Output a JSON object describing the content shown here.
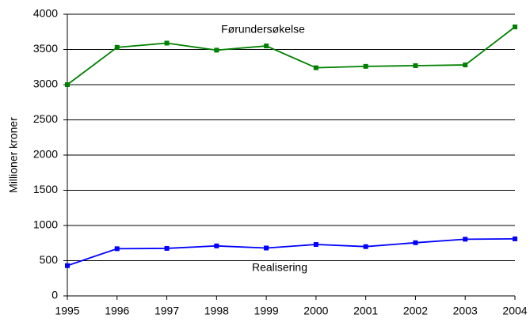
{
  "chart_data": {
    "type": "line",
    "y_label": "Millioner kroner",
    "x": [
      1995,
      1996,
      1997,
      1998,
      1999,
      2000,
      2001,
      2002,
      2003,
      2004
    ],
    "series": [
      {
        "name": "Førundersøkelse",
        "color": "#008000",
        "values": [
          3000,
          3530,
          3590,
          3490,
          3550,
          3240,
          3260,
          3270,
          3280,
          3820
        ]
      },
      {
        "name": "Realisering",
        "color": "#0000ff",
        "values": [
          430,
          670,
          675,
          710,
          680,
          730,
          700,
          755,
          805,
          810
        ]
      }
    ],
    "xlim": [
      1995,
      2004
    ],
    "xticks": [
      1995,
      1996,
      1997,
      1998,
      1999,
      2000,
      2001,
      2002,
      2003,
      2004
    ],
    "ylim": [
      0,
      4000
    ],
    "yticks": [
      0,
      500,
      1000,
      1500,
      2000,
      2500,
      3000,
      3500,
      4000
    ],
    "grid": true
  }
}
